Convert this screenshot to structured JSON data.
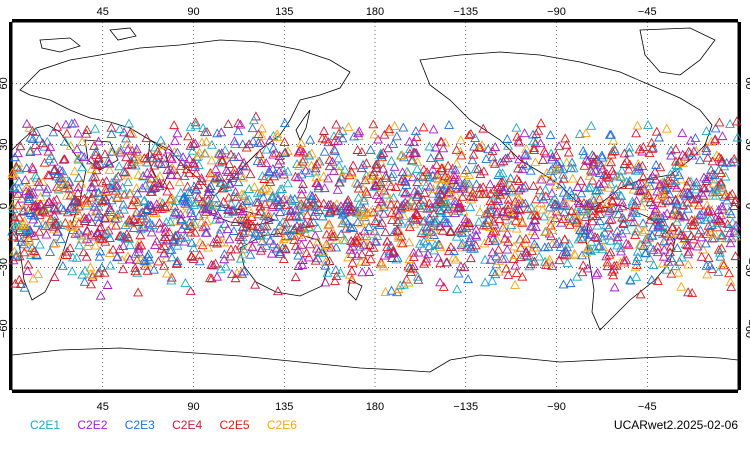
{
  "map": {
    "projection": "cylindrical equidistant, centered on 180",
    "lon_range": [
      0,
      360
    ],
    "lat_range": [
      -90,
      90
    ],
    "grid": true,
    "top_ticks": [
      "45",
      "90",
      "135",
      "180",
      "−135",
      "−90",
      "−45"
    ],
    "bottom_ticks": [
      "45",
      "90",
      "135",
      "180",
      "−135",
      "−90",
      "−45"
    ],
    "lat_ticks": [
      "60",
      "30",
      "0",
      "−30",
      "−60"
    ],
    "occultation_lat_band": [
      -45,
      45
    ]
  },
  "legend": {
    "items": [
      {
        "label": "C2E1",
        "color": "#1fa8c4"
      },
      {
        "label": "C2E2",
        "color": "#a31cc4"
      },
      {
        "label": "C2E3",
        "color": "#1f6fd6"
      },
      {
        "label": "C2E4",
        "color": "#c41c3a"
      },
      {
        "label": "C2E5",
        "color": "#e01a1a"
      },
      {
        "label": "C2E6",
        "color": "#f2a51a"
      }
    ]
  },
  "stamp": "UCARwet2.2025-02-06"
}
